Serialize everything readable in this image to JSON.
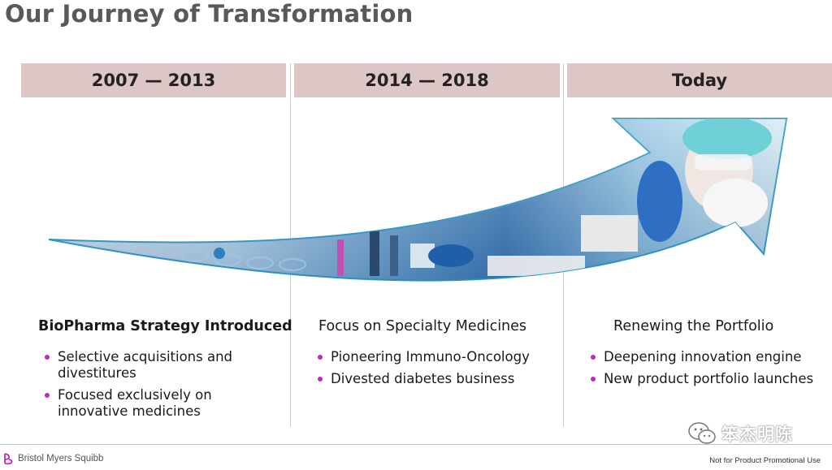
{
  "title": "Our Journey of Transformation",
  "periods": [
    {
      "label": "2007 — 2013",
      "heading": "BioPharma Strategy Introduced",
      "bullets": [
        "Selective acquisitions and divestitures",
        "Focused exclusively on innovative medicines"
      ]
    },
    {
      "label": "2014 — 2018",
      "heading": "Focus on Specialty Medicines",
      "bullets": [
        "Pioneering Immuno-Oncology",
        "Divested diabetes business"
      ]
    },
    {
      "label": "Today",
      "heading": "Renewing the Portfolio",
      "bullets": [
        "Deepening innovation engine",
        "New product portfolio launches"
      ]
    }
  ],
  "footer": {
    "logo_text": "Bristol Myers Squibb",
    "note": "Not for Product Promotional Use"
  },
  "watermark": {
    "text": "笨杰明陈"
  },
  "colors": {
    "header_band": "#dcc6c6",
    "bullet": "#be2bbb",
    "title": "#595959",
    "logo_accent": "#be2bbb"
  },
  "icons": {
    "arrow": "growth-arrow-icon",
    "logo": "bms-logo-icon",
    "watermark": "wechat-icon"
  }
}
